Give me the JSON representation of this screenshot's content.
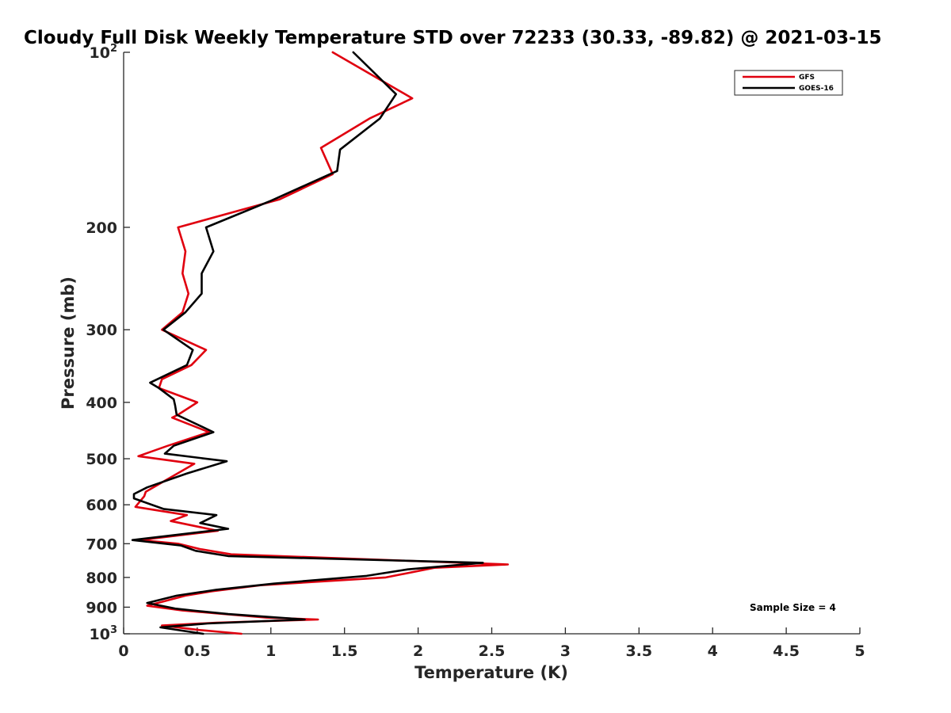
{
  "chart_data": {
    "type": "line",
    "title": "Cloudy Full Disk Weekly Temperature STD over 72233 (30.33, -89.82) @ 2021-03-15",
    "xlabel": "Temperature (K)",
    "ylabel": "Pressure (mb)",
    "xlim": [
      0,
      5
    ],
    "ylim": [
      100,
      1000
    ],
    "yscale": "log",
    "y_reversed": true,
    "grid": false,
    "legend_position": "top-right",
    "x_ticks": [
      0,
      0.5,
      1,
      1.5,
      2,
      2.5,
      3,
      3.5,
      4,
      4.5,
      5
    ],
    "x_tick_labels": [
      "0",
      "0.5",
      "1",
      "1.5",
      "2",
      "2.5",
      "3",
      "3.5",
      "4",
      "4.5",
      "5"
    ],
    "y_ticks": [
      {
        "value": 100,
        "base": "10",
        "exp": "2"
      },
      {
        "value": 200,
        "label": "200"
      },
      {
        "value": 300,
        "label": "300"
      },
      {
        "value": 400,
        "label": "400"
      },
      {
        "value": 500,
        "label": "500"
      },
      {
        "value": 600,
        "label": "600"
      },
      {
        "value": 700,
        "label": "700"
      },
      {
        "value": 800,
        "label": "800"
      },
      {
        "value": 900,
        "label": "900"
      },
      {
        "value": 1000,
        "base": "10",
        "exp": "3"
      }
    ],
    "annotation": "Sample Size = 4",
    "series": [
      {
        "name": "GFS",
        "color": "#e0000f",
        "points": [
          [
            1.42,
            100
          ],
          [
            1.96,
            120
          ],
          [
            1.67,
            130
          ],
          [
            1.34,
            146
          ],
          [
            1.42,
            162
          ],
          [
            1.06,
            179
          ],
          [
            0.37,
            200
          ],
          [
            0.42,
            220
          ],
          [
            0.4,
            240
          ],
          [
            0.44,
            260
          ],
          [
            0.4,
            280
          ],
          [
            0.26,
            300
          ],
          [
            0.56,
            325
          ],
          [
            0.46,
            345
          ],
          [
            0.26,
            365
          ],
          [
            0.24,
            378
          ],
          [
            0.5,
            400
          ],
          [
            0.37,
            420
          ],
          [
            0.33,
            425
          ],
          [
            0.58,
            450
          ],
          [
            0.3,
            475
          ],
          [
            0.1,
            495
          ],
          [
            0.48,
            510
          ],
          [
            0.31,
            540
          ],
          [
            0.15,
            570
          ],
          [
            0.14,
            580
          ],
          [
            0.08,
            605
          ],
          [
            0.43,
            625
          ],
          [
            0.32,
            640
          ],
          [
            0.64,
            665
          ],
          [
            0.11,
            690
          ],
          [
            0.37,
            700
          ],
          [
            0.52,
            715
          ],
          [
            0.73,
            730
          ],
          [
            2.61,
            760
          ],
          [
            2.11,
            770
          ],
          [
            1.78,
            800
          ],
          [
            0.93,
            825
          ],
          [
            0.6,
            845
          ],
          [
            0.42,
            860
          ],
          [
            0.16,
            895
          ],
          [
            0.4,
            912
          ],
          [
            0.62,
            922
          ],
          [
            0.97,
            938
          ],
          [
            1.32,
            945
          ],
          [
            0.63,
            957
          ],
          [
            0.26,
            968
          ],
          [
            0.51,
            985
          ],
          [
            0.8,
            1000
          ]
        ]
      },
      {
        "name": "GOES-16",
        "color": "#000000",
        "points": [
          [
            1.56,
            100
          ],
          [
            1.85,
            118
          ],
          [
            1.74,
            130
          ],
          [
            1.47,
            147
          ],
          [
            1.45,
            160
          ],
          [
            1.0,
            180
          ],
          [
            0.56,
            200
          ],
          [
            0.61,
            220
          ],
          [
            0.53,
            240
          ],
          [
            0.53,
            260
          ],
          [
            0.42,
            280
          ],
          [
            0.27,
            300
          ],
          [
            0.47,
            325
          ],
          [
            0.43,
            345
          ],
          [
            0.18,
            370
          ],
          [
            0.24,
            378
          ],
          [
            0.34,
            395
          ],
          [
            0.35,
            405
          ],
          [
            0.36,
            420
          ],
          [
            0.61,
            450
          ],
          [
            0.34,
            475
          ],
          [
            0.28,
            490
          ],
          [
            0.7,
            505
          ],
          [
            0.43,
            530
          ],
          [
            0.16,
            560
          ],
          [
            0.07,
            575
          ],
          [
            0.07,
            585
          ],
          [
            0.27,
            610
          ],
          [
            0.63,
            625
          ],
          [
            0.52,
            645
          ],
          [
            0.71,
            660
          ],
          [
            0.06,
            690
          ],
          [
            0.39,
            705
          ],
          [
            0.49,
            720
          ],
          [
            0.71,
            735
          ],
          [
            2.44,
            755
          ],
          [
            1.93,
            775
          ],
          [
            1.65,
            795
          ],
          [
            1.02,
            820
          ],
          [
            0.63,
            840
          ],
          [
            0.36,
            860
          ],
          [
            0.16,
            885
          ],
          [
            0.35,
            905
          ],
          [
            0.49,
            913
          ],
          [
            0.71,
            925
          ],
          [
            1.23,
            945
          ],
          [
            0.57,
            960
          ],
          [
            0.25,
            975
          ],
          [
            0.54,
            1000
          ]
        ]
      }
    ]
  }
}
